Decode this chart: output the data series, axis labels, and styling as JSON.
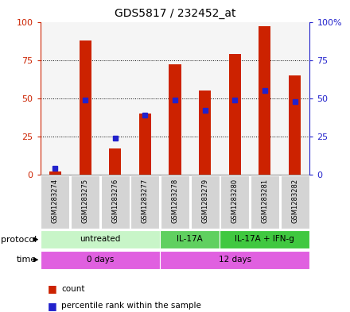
{
  "title": "GDS5817 / 232452_at",
  "samples": [
    "GSM1283274",
    "GSM1283275",
    "GSM1283276",
    "GSM1283277",
    "GSM1283278",
    "GSM1283279",
    "GSM1283280",
    "GSM1283281",
    "GSM1283282"
  ],
  "counts": [
    2,
    88,
    17,
    40,
    72,
    55,
    79,
    97,
    65
  ],
  "percentiles": [
    4,
    49,
    24,
    39,
    49,
    42,
    49,
    55,
    48
  ],
  "protocol_groups": [
    {
      "label": "untreated",
      "start": 0,
      "end": 3,
      "color": "#c8f5c8"
    },
    {
      "label": "IL-17A",
      "start": 4,
      "end": 5,
      "color": "#60d060"
    },
    {
      "label": "IL-17A + IFN-g",
      "start": 6,
      "end": 8,
      "color": "#40c840"
    }
  ],
  "time_groups": [
    {
      "label": "0 days",
      "start": 0,
      "end": 3,
      "color": "#e060e0"
    },
    {
      "label": "12 days",
      "start": 4,
      "end": 8,
      "color": "#e060e0"
    }
  ],
  "bar_color": "#cc2200",
  "dot_color": "#2222cc",
  "ylim": [
    0,
    100
  ],
  "yticks": [
    0,
    25,
    50,
    75,
    100
  ],
  "grid_values": [
    25,
    50,
    75
  ],
  "left_tick_color": "#cc2200",
  "right_tick_color": "#2222cc",
  "right_tick_labels": [
    "0",
    "25",
    "50",
    "75",
    "100%"
  ],
  "sample_box_color": "#d4d4d4",
  "plot_bg": "#f5f5f5"
}
